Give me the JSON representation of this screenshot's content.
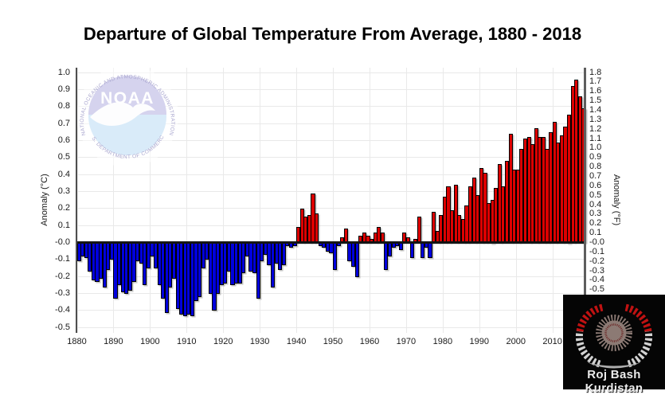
{
  "page": {
    "title": "Departure of Global Temperature From Average, 1880 - 2018"
  },
  "chart_data": {
    "type": "bar",
    "title": "Departure of Global Temperature From Average, 1880 - 2018",
    "xlabel": "",
    "ylabel_left": "Anomaly (°C)",
    "ylabel_right": "Anomaly (°F)",
    "grid": true,
    "legend": "none",
    "bar_positive_color": "#dd0000",
    "bar_negative_color": "#0000dd",
    "ylim_c": [
      -0.55,
      1.05
    ],
    "x_tick_labels": [
      "1880",
      "1890",
      "1900",
      "1910",
      "1920",
      "1930",
      "1940",
      "1950",
      "1960",
      "1970",
      "1980",
      "1990",
      "2000",
      "2010"
    ],
    "y_tick_labels_left": [
      "1.0",
      "0.9",
      "0.8",
      "0.7",
      "0.6",
      "0.5",
      "0.4",
      "0.3",
      "0.2",
      "0.1",
      "-0.0",
      "-0.1",
      "-0.2",
      "-0.3",
      "-0.4",
      "-0.5"
    ],
    "y_tick_labels_right": [
      "1.8",
      "1.7",
      "1.6",
      "1.5",
      "1.4",
      "1.3",
      "1.2",
      "1.1",
      "1.0",
      "0.9",
      "0.8",
      "0.7",
      "0.6",
      "0.5",
      "0.4",
      "0.3",
      "0.2",
      "0.1",
      "-0.0",
      "-0.1",
      "-0.2",
      "-0.3",
      "-0.4",
      "-0.5"
    ],
    "start_year": 1880,
    "end_year": 2018,
    "anomaly_c_by_year": [
      -0.11,
      -0.08,
      -0.09,
      -0.17,
      -0.22,
      -0.23,
      -0.21,
      -0.26,
      -0.16,
      -0.1,
      -0.33,
      -0.25,
      -0.29,
      -0.3,
      -0.28,
      -0.23,
      -0.11,
      -0.12,
      -0.25,
      -0.15,
      -0.08,
      -0.15,
      -0.25,
      -0.33,
      -0.41,
      -0.26,
      -0.21,
      -0.39,
      -0.42,
      -0.43,
      -0.42,
      -0.43,
      -0.34,
      -0.32,
      -0.15,
      -0.1,
      -0.3,
      -0.4,
      -0.3,
      -0.25,
      -0.24,
      -0.17,
      -0.25,
      -0.24,
      -0.24,
      -0.18,
      -0.08,
      -0.17,
      -0.18,
      -0.33,
      -0.11,
      -0.07,
      -0.13,
      -0.26,
      -0.12,
      -0.16,
      -0.13,
      -0.02,
      -0.03,
      -0.02,
      0.09,
      0.2,
      0.15,
      0.16,
      0.29,
      0.17,
      -0.02,
      -0.03,
      -0.05,
      -0.06,
      -0.16,
      -0.02,
      0.03,
      0.08,
      -0.11,
      -0.14,
      -0.2,
      0.04,
      0.06,
      0.04,
      0.02,
      0.06,
      0.09,
      0.06,
      -0.16,
      -0.08,
      -0.03,
      -0.02,
      -0.04,
      0.06,
      0.03,
      -0.09,
      0.02,
      0.15,
      -0.09,
      -0.03,
      -0.09,
      0.18,
      0.07,
      0.16,
      0.27,
      0.33,
      0.19,
      0.34,
      0.16,
      0.14,
      0.22,
      0.33,
      0.38,
      0.28,
      0.44,
      0.41,
      0.23,
      0.25,
      0.32,
      0.46,
      0.33,
      0.48,
      0.64,
      0.43,
      0.43,
      0.55,
      0.61,
      0.62,
      0.58,
      0.67,
      0.62,
      0.62,
      0.55,
      0.65,
      0.71,
      0.59,
      0.63,
      0.68,
      0.75,
      0.92,
      0.96,
      0.86,
      0.79
    ]
  },
  "watermark": {
    "acronym": "NOAA",
    "arc_text_top": "NATIONAL OCEANIC AND ATMOSPHERIC ADMINISTRATION",
    "arc_text_bottom": "U.S. DEPARTMENT OF COMMERCE"
  },
  "corner_logo": {
    "label": "Roj Bash Kurdistan"
  }
}
